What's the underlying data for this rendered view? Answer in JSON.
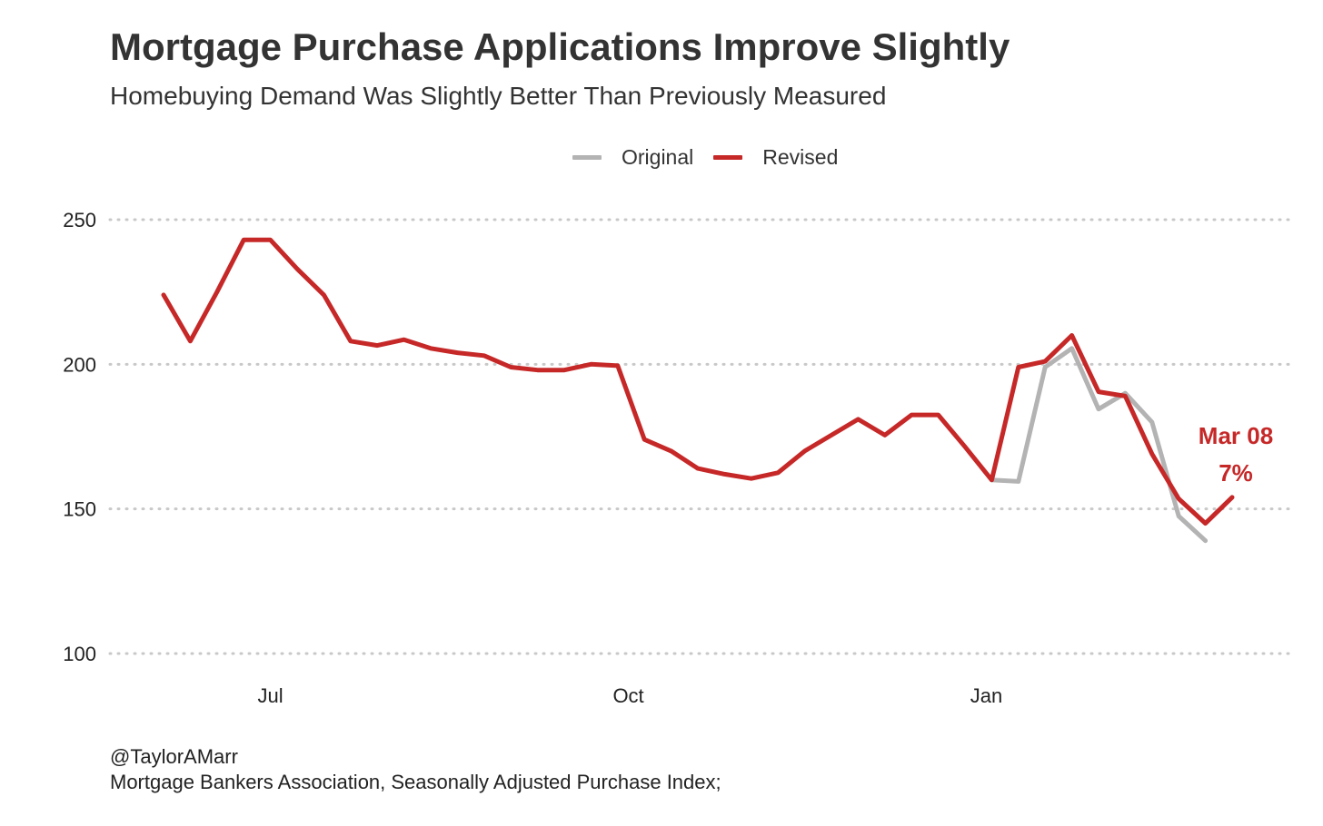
{
  "chart_data": {
    "type": "line",
    "title": "Mortgage Purchase Applications Improve Slightly",
    "subtitle": "Homebuying Demand Was Slightly Better Than Previously Measured",
    "xlabel": "",
    "ylabel": "",
    "ylim": [
      100,
      250
    ],
    "y_ticks": [
      100,
      150,
      200,
      250
    ],
    "x_ticks": [
      {
        "label": "Jul",
        "week": 4
      },
      {
        "label": "Oct",
        "week": 17.4
      },
      {
        "label": "Jan",
        "week": 30.8
      }
    ],
    "grid": "horizontal dotted",
    "legend_position": "top",
    "series": [
      {
        "name": "Original",
        "color": "#b3b3b3",
        "x": [
          31,
          32,
          33,
          34,
          35,
          36,
          37,
          38,
          39
        ],
        "values": [
          160,
          159.5,
          199,
          205.5,
          184.5,
          190,
          180,
          147.5,
          139
        ]
      },
      {
        "name": "Revised",
        "color": "#c62828",
        "x": [
          0,
          1,
          2,
          3,
          4,
          5,
          6,
          7,
          8,
          9,
          10,
          11,
          12,
          13,
          14,
          15,
          16,
          17,
          18,
          19,
          20,
          21,
          22,
          23,
          24,
          25,
          26,
          27,
          28,
          29,
          30,
          31,
          32,
          33,
          34,
          35,
          36,
          37,
          38,
          39,
          40
        ],
        "values": [
          224,
          208,
          225,
          243,
          243,
          233,
          224,
          208,
          206.5,
          208.5,
          205.5,
          204,
          203,
          199,
          198,
          198,
          200,
          199.5,
          174,
          170,
          164,
          162,
          160.5,
          162.5,
          170,
          175.5,
          181,
          175.5,
          182.5,
          182.5,
          171.5,
          160,
          199,
          201,
          210,
          190.5,
          189,
          169,
          153.5,
          145,
          154
        ]
      }
    ],
    "annotation": {
      "label": "Mar 08",
      "value_label": "7%",
      "color": "#c62828"
    }
  },
  "caption": {
    "line1": "@TaylorAMarr",
    "line2": "Mortgage Bankers Association, Seasonally Adjusted Purchase Index;"
  }
}
